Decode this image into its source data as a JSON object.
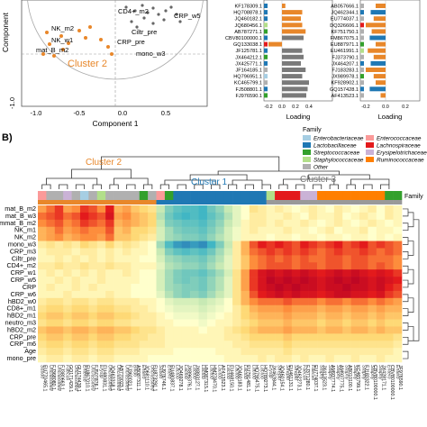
{
  "panel_b_label": "B)",
  "pca": {
    "xlabel": "Component 1",
    "ylabel": "Component",
    "xticks": [
      "-1.0",
      "-0.5",
      "0.0",
      "0.5"
    ],
    "yticks": [
      "-1.0"
    ],
    "cluster2_label": "Cluster 2",
    "point_labels": [
      "CD4+_m2",
      "CRP_w5",
      "NK_m2",
      "NK_w1",
      "mat_B_m2",
      "Ciltr_pre",
      "CRP_pre",
      "mono_w3"
    ]
  },
  "loading_panels": {
    "xlabel_left": "Loading",
    "xlabel_right": "Loading",
    "xticks_left": [
      "-0.2",
      "0.0",
      "0.2",
      "0.4"
    ],
    "xticks_right": [
      "-0.2",
      "0.0",
      "0.2"
    ],
    "taxa_left": [
      "KF178309.1",
      "HQ708878.1",
      "JQ460182.1",
      "JQ680456.1",
      "AB787271.1",
      "CBV80100000.1",
      "GQ133038.1",
      "JF125781.1",
      "JX464212.1",
      "JX425771.1",
      "JF164185.1",
      "HQ796951.1",
      "KC465799.1",
      "FJ508801.1",
      "FJ976590.1"
    ],
    "taxa_right": [
      "AB057666.1",
      "JQ462344.1",
      "EU774037.1",
      "DQ326606.1",
      "KF751750.1",
      "FM867075.1",
      "EU887971.1",
      "EU461991.1",
      "FJ373790.1",
      "JX464207.1",
      "FJ183283.1",
      "JX989978.1",
      "KF928902.1",
      "GQ157428.1",
      "AF413523.1"
    ]
  },
  "heatmap": {
    "cluster_labels": [
      "Cluster 2",
      "Cluster 1",
      "Cluster 3"
    ],
    "family_track_label": "Family",
    "rows": [
      "mat_B_m2",
      "mat_B_w3",
      "immat_B_m2",
      "NK_m1",
      "NK_m2",
      "mono_w3",
      "CRP_m3",
      "Ciltr_pre",
      "CD4+_m2",
      "CRP_w1",
      "CRP_w5",
      "CRP",
      "CRP_w6",
      "hBD2_w0",
      "CD8+_m1",
      "hBD2_m1",
      "neutro_m3",
      "hBD2_m2",
      "CRP_pre",
      "CRP_m6",
      "Age",
      "mono_pre"
    ],
    "columns": [
      "EU770465.1",
      "FJ368080.1",
      "FJ380663.1",
      "GQ171429.1",
      "GU174439.1",
      "EU867010.1",
      "FJ507876.1",
      "EU480831.1",
      "JQ463318.1",
      "AB770023.1",
      "FJ360021.1",
      "AB087311.1",
      "JQ681110.1",
      "EU873291.1",
      "FJ976746.1",
      "EU480837.1",
      "JQ469278.1",
      "JX896376.1",
      "JX893127.1",
      "HM087315.1",
      "HM278470.1",
      "AF413523.1",
      "EU468150.1",
      "JQ460183.1",
      "EU791481.1",
      "HQ795475.1",
      "HQ789273.1",
      "JX462844.1",
      "JQ460154.1",
      "EU461131.1",
      "JQ462273.1",
      "FJ371280.1",
      "EU774037.1",
      "JX413523.1",
      "AM937774.1",
      "AM937775.1",
      "AB010100.1",
      "KC465799.1",
      "FJ183322.1",
      "CBV80100000.1",
      "JX428171.1",
      "CBV80100000.1",
      "JF976590.1"
    ],
    "taxa_names": [
      "Subdo",
      "Unclassified",
      "Unclassified",
      "Faecali",
      "Unclassified",
      "Enterob",
      "Unclassified",
      "Erysip",
      "Unclassified",
      "Unclassified",
      "Unclassified",
      "Bifido",
      "Entero",
      "Unclassified",
      "Subdo",
      "Entero",
      "Lactob",
      "Lactob",
      "Lactob",
      "Lactob",
      "Lactob",
      "Lactob",
      "Lactob",
      "Lactob",
      "Lactob",
      "Lactob",
      "Lactob",
      "Erysip",
      "Strepto",
      "Strepto",
      "Strepto",
      "Faecali",
      "Faecali",
      "Staphy",
      "Staphy",
      "Staphy",
      "Staphy",
      "Staphy",
      "Staphy",
      "Staphy",
      "Staphy",
      "Entero",
      "Entero"
    ],
    "matrix": [
      [
        0.35,
        0.45,
        0.55,
        0.35,
        0.4,
        0.55,
        0.5,
        0.4,
        0.6,
        0.3,
        0.35,
        0.25,
        0.2,
        0.15,
        -0.2,
        -0.4,
        -0.5,
        -0.55,
        -0.55,
        -0.6,
        -0.45,
        -0.35,
        -0.2,
        -0.1,
        0.0,
        0.15,
        0.1,
        0.05,
        0.1,
        0.05,
        0.0,
        0.05,
        0.1,
        0.05,
        0.0,
        0.1,
        0.05,
        0.0,
        0.05,
        0.1,
        0.0,
        0.1,
        0.05
      ],
      [
        0.45,
        0.5,
        0.55,
        0.45,
        0.5,
        0.6,
        0.55,
        0.5,
        0.65,
        0.35,
        0.4,
        0.3,
        0.25,
        0.2,
        -0.25,
        -0.45,
        -0.55,
        -0.6,
        -0.55,
        -0.6,
        -0.5,
        -0.4,
        -0.25,
        -0.1,
        0.0,
        0.1,
        0.1,
        0.05,
        0.05,
        0.1,
        0.05,
        0.0,
        0.1,
        0.05,
        0.05,
        0.1,
        0.0,
        0.05,
        0.1,
        0.05,
        0.0,
        0.1,
        0.05
      ],
      [
        0.4,
        0.45,
        0.5,
        0.4,
        0.45,
        0.55,
        0.5,
        0.45,
        0.55,
        0.3,
        0.35,
        0.3,
        0.25,
        0.2,
        -0.2,
        -0.4,
        -0.45,
        -0.5,
        -0.5,
        -0.55,
        -0.45,
        -0.35,
        -0.2,
        -0.1,
        0.05,
        0.1,
        0.1,
        0.05,
        0.1,
        0.05,
        0.05,
        0.1,
        0.05,
        0.0,
        0.05,
        0.1,
        0.05,
        0.0,
        0.05,
        0.1,
        0.05,
        0.0,
        0.05
      ],
      [
        0.3,
        0.35,
        0.45,
        0.35,
        0.4,
        0.45,
        0.4,
        0.4,
        0.5,
        0.25,
        0.3,
        0.2,
        0.2,
        0.15,
        -0.15,
        -0.3,
        -0.4,
        -0.45,
        -0.45,
        -0.5,
        -0.4,
        -0.3,
        -0.15,
        -0.05,
        0.05,
        0.1,
        0.05,
        0.05,
        0.05,
        0.1,
        0.05,
        0.05,
        0.0,
        0.05,
        0.1,
        0.0,
        0.05,
        0.05,
        0.1,
        0.0,
        0.05,
        0.05,
        0.0
      ],
      [
        0.3,
        0.35,
        0.4,
        0.3,
        0.35,
        0.4,
        0.4,
        0.35,
        0.45,
        0.25,
        0.25,
        0.2,
        0.15,
        0.1,
        -0.15,
        -0.3,
        -0.35,
        -0.4,
        -0.4,
        -0.45,
        -0.35,
        -0.25,
        -0.15,
        -0.05,
        0.05,
        0.05,
        0.05,
        0.0,
        0.05,
        0.05,
        0.0,
        0.05,
        0.05,
        0.0,
        0.05,
        0.05,
        0.0,
        0.05,
        0.05,
        0.0,
        0.05,
        0.0,
        0.05
      ],
      [
        0.1,
        0.15,
        0.1,
        0.15,
        0.1,
        0.2,
        0.15,
        0.1,
        0.2,
        0.1,
        0.15,
        0.1,
        0.05,
        0.0,
        -0.3,
        -0.55,
        -0.7,
        -0.75,
        -0.7,
        -0.75,
        -0.6,
        -0.4,
        -0.2,
        0.1,
        0.3,
        0.5,
        0.6,
        0.55,
        0.6,
        0.55,
        0.5,
        0.6,
        0.55,
        0.5,
        0.55,
        0.6,
        0.5,
        0.55,
        0.6,
        0.5,
        0.55,
        0.5,
        0.45
      ],
      [
        0.05,
        0.1,
        0.1,
        0.1,
        0.05,
        0.1,
        0.1,
        0.05,
        0.1,
        0.05,
        0.1,
        0.05,
        0.05,
        0.0,
        -0.2,
        -0.4,
        -0.5,
        -0.55,
        -0.5,
        -0.55,
        -0.45,
        -0.3,
        -0.15,
        0.1,
        0.3,
        0.45,
        0.5,
        0.55,
        0.5,
        0.55,
        0.5,
        0.55,
        0.5,
        0.45,
        0.5,
        0.55,
        0.5,
        0.5,
        0.55,
        0.5,
        0.45,
        0.5,
        0.45
      ],
      [
        0.05,
        0.05,
        0.1,
        0.05,
        0.1,
        0.05,
        0.1,
        0.05,
        0.1,
        0.05,
        0.05,
        0.05,
        0.0,
        0.0,
        -0.15,
        -0.3,
        -0.35,
        -0.4,
        -0.4,
        -0.45,
        -0.35,
        -0.25,
        -0.1,
        0.1,
        0.25,
        0.4,
        0.45,
        0.5,
        0.45,
        0.5,
        0.45,
        0.5,
        0.45,
        0.45,
        0.5,
        0.5,
        0.45,
        0.5,
        0.5,
        0.45,
        0.45,
        0.45,
        0.4
      ],
      [
        0.1,
        0.1,
        0.15,
        0.1,
        0.1,
        0.15,
        0.1,
        0.1,
        0.15,
        0.1,
        0.1,
        0.05,
        0.05,
        0.05,
        -0.1,
        -0.25,
        -0.3,
        -0.35,
        -0.35,
        -0.4,
        -0.3,
        -0.2,
        -0.1,
        0.1,
        0.25,
        0.4,
        0.45,
        0.5,
        0.5,
        0.5,
        0.45,
        0.5,
        0.5,
        0.45,
        0.5,
        0.5,
        0.45,
        0.5,
        0.5,
        0.45,
        0.5,
        0.45,
        0.4
      ],
      [
        0.05,
        0.1,
        0.05,
        0.1,
        0.05,
        0.1,
        0.05,
        0.1,
        0.05,
        0.05,
        0.1,
        0.05,
        0.0,
        0.0,
        -0.15,
        -0.3,
        -0.4,
        -0.45,
        -0.45,
        -0.5,
        -0.4,
        -0.3,
        -0.15,
        0.15,
        0.35,
        0.55,
        0.65,
        0.7,
        0.65,
        0.7,
        0.65,
        0.7,
        0.65,
        0.6,
        0.65,
        0.7,
        0.65,
        0.7,
        0.65,
        0.6,
        0.65,
        0.6,
        0.55
      ],
      [
        0.05,
        0.05,
        0.1,
        0.05,
        0.1,
        0.05,
        0.05,
        0.1,
        0.05,
        0.05,
        0.05,
        0.05,
        0.0,
        0.0,
        -0.15,
        -0.3,
        -0.4,
        -0.45,
        -0.4,
        -0.45,
        -0.35,
        -0.25,
        -0.1,
        0.15,
        0.35,
        0.55,
        0.65,
        0.75,
        0.7,
        0.75,
        0.7,
        0.75,
        0.7,
        0.65,
        0.7,
        0.75,
        0.7,
        0.75,
        0.7,
        0.65,
        0.7,
        0.65,
        0.6
      ],
      [
        0.05,
        0.1,
        0.05,
        0.05,
        0.1,
        0.05,
        0.1,
        0.05,
        0.05,
        0.05,
        0.05,
        0.0,
        0.0,
        0.0,
        -0.15,
        -0.3,
        -0.35,
        -0.4,
        -0.4,
        -0.45,
        -0.35,
        -0.25,
        -0.1,
        0.15,
        0.35,
        0.55,
        0.65,
        0.7,
        0.75,
        0.7,
        0.75,
        0.7,
        0.7,
        0.65,
        0.7,
        0.7,
        0.75,
        0.7,
        0.7,
        0.65,
        0.7,
        0.6,
        0.55
      ],
      [
        0.05,
        0.05,
        0.05,
        0.1,
        0.05,
        0.05,
        0.05,
        0.05,
        0.1,
        0.05,
        0.05,
        0.0,
        0.0,
        0.0,
        -0.1,
        -0.25,
        -0.35,
        -0.4,
        -0.35,
        -0.4,
        -0.3,
        -0.2,
        -0.1,
        0.15,
        0.3,
        0.5,
        0.6,
        0.65,
        0.7,
        0.65,
        0.7,
        0.65,
        0.65,
        0.6,
        0.65,
        0.7,
        0.7,
        0.65,
        0.65,
        0.6,
        0.65,
        0.55,
        0.5
      ],
      [
        0.1,
        0.15,
        0.15,
        0.1,
        0.15,
        0.15,
        0.1,
        0.15,
        0.15,
        0.1,
        0.1,
        0.1,
        0.05,
        0.05,
        0.0,
        -0.1,
        -0.15,
        -0.15,
        -0.15,
        -0.2,
        -0.15,
        -0.1,
        0.0,
        0.15,
        0.3,
        0.4,
        0.45,
        0.45,
        0.45,
        0.5,
        0.45,
        0.45,
        0.45,
        0.4,
        0.45,
        0.45,
        0.4,
        0.45,
        0.45,
        0.4,
        0.45,
        0.4,
        0.35
      ],
      [
        0.15,
        0.2,
        0.2,
        0.15,
        0.2,
        0.2,
        0.15,
        0.2,
        0.2,
        0.15,
        0.15,
        0.1,
        0.1,
        0.05,
        0.0,
        -0.05,
        -0.1,
        -0.1,
        -0.1,
        -0.15,
        -0.1,
        -0.05,
        0.0,
        0.1,
        0.2,
        0.3,
        0.35,
        0.35,
        0.35,
        0.4,
        0.35,
        0.35,
        0.35,
        0.3,
        0.35,
        0.35,
        0.3,
        0.35,
        0.35,
        0.3,
        0.35,
        0.3,
        0.3
      ],
      [
        0.2,
        0.25,
        0.25,
        0.2,
        0.25,
        0.25,
        0.2,
        0.25,
        0.25,
        0.2,
        0.2,
        0.15,
        0.1,
        0.1,
        0.05,
        0.0,
        -0.05,
        -0.05,
        -0.05,
        -0.1,
        -0.05,
        0.0,
        0.05,
        0.1,
        0.2,
        0.25,
        0.3,
        0.3,
        0.3,
        0.35,
        0.3,
        0.3,
        0.3,
        0.25,
        0.3,
        0.3,
        0.25,
        0.3,
        0.3,
        0.25,
        0.3,
        0.25,
        0.25
      ],
      [
        0.15,
        0.2,
        0.2,
        0.15,
        0.2,
        0.2,
        0.15,
        0.2,
        0.2,
        0.15,
        0.15,
        0.1,
        0.1,
        0.1,
        0.05,
        0.05,
        0.0,
        0.0,
        0.0,
        -0.05,
        0.0,
        0.05,
        0.05,
        0.1,
        0.15,
        0.2,
        0.25,
        0.25,
        0.25,
        0.3,
        0.25,
        0.25,
        0.25,
        0.2,
        0.25,
        0.25,
        0.2,
        0.25,
        0.25,
        0.2,
        0.25,
        0.2,
        0.2
      ],
      [
        0.25,
        0.3,
        0.3,
        0.25,
        0.3,
        0.3,
        0.25,
        0.3,
        0.3,
        0.25,
        0.25,
        0.2,
        0.15,
        0.15,
        0.1,
        0.05,
        0.05,
        0.05,
        0.05,
        0.0,
        0.05,
        0.05,
        0.1,
        0.15,
        0.2,
        0.25,
        0.3,
        0.3,
        0.3,
        0.35,
        0.3,
        0.3,
        0.3,
        0.25,
        0.3,
        0.3,
        0.25,
        0.3,
        0.3,
        0.25,
        0.3,
        0.25,
        0.25
      ],
      [
        0.2,
        0.25,
        0.25,
        0.2,
        0.25,
        0.25,
        0.2,
        0.25,
        0.25,
        0.2,
        0.2,
        0.15,
        0.15,
        0.1,
        0.1,
        0.05,
        0.05,
        0.05,
        0.05,
        0.05,
        0.05,
        0.05,
        0.1,
        0.1,
        0.15,
        0.2,
        0.2,
        0.2,
        0.2,
        0.25,
        0.2,
        0.2,
        0.2,
        0.2,
        0.2,
        0.2,
        0.2,
        0.2,
        0.2,
        0.2,
        0.2,
        0.2,
        0.15
      ],
      [
        0.15,
        0.2,
        0.2,
        0.15,
        0.2,
        0.2,
        0.15,
        0.2,
        0.2,
        0.15,
        0.15,
        0.15,
        0.1,
        0.1,
        0.1,
        0.05,
        0.05,
        0.05,
        0.05,
        0.05,
        0.05,
        0.05,
        0.05,
        0.1,
        0.1,
        0.15,
        0.15,
        0.15,
        0.15,
        0.2,
        0.15,
        0.15,
        0.15,
        0.15,
        0.15,
        0.15,
        0.15,
        0.15,
        0.15,
        0.15,
        0.15,
        0.15,
        0.1
      ],
      [
        0.1,
        0.15,
        0.15,
        0.1,
        0.15,
        0.15,
        0.1,
        0.15,
        0.15,
        0.1,
        0.1,
        0.1,
        0.05,
        0.05,
        0.05,
        0.05,
        0.0,
        0.0,
        0.0,
        0.0,
        0.0,
        0.05,
        0.05,
        0.05,
        0.1,
        0.1,
        0.1,
        0.1,
        0.1,
        0.15,
        0.1,
        0.1,
        0.1,
        0.1,
        0.1,
        0.1,
        0.1,
        0.1,
        0.1,
        0.1,
        0.1,
        0.1,
        0.05
      ],
      [
        0.05,
        0.1,
        0.1,
        0.05,
        0.1,
        0.1,
        0.05,
        0.1,
        0.1,
        0.05,
        0.05,
        0.05,
        0.05,
        0.0,
        0.0,
        0.0,
        0.0,
        0.0,
        0.0,
        0.0,
        0.0,
        0.0,
        0.05,
        0.05,
        0.05,
        0.05,
        0.1,
        0.05,
        0.1,
        0.1,
        0.05,
        0.1,
        0.05,
        0.05,
        0.1,
        0.05,
        0.05,
        0.1,
        0.05,
        0.05,
        0.1,
        0.05,
        0.05
      ]
    ],
    "family_of_column": [
      1,
      8,
      8,
      5,
      8,
      0,
      8,
      6,
      8,
      8,
      8,
      8,
      4,
      8,
      1,
      4,
      2,
      2,
      2,
      2,
      2,
      2,
      2,
      2,
      2,
      2,
      2,
      6,
      3,
      3,
      3,
      5,
      5,
      7,
      7,
      7,
      7,
      7,
      7,
      7,
      7,
      4,
      4
    ]
  },
  "legend": {
    "title": "Family",
    "items": [
      {
        "label": "Enterobacteriaceae",
        "color": "#a6cee3"
      },
      {
        "label": "Enterococcaceae",
        "color": "#fb9a99"
      },
      {
        "label": "Lactobacillaceae",
        "color": "#1f78b4"
      },
      {
        "label": "Lachnospiraceae",
        "color": "#e31a1c"
      },
      {
        "label": "Streptococcaceae",
        "color": "#33a02c"
      },
      {
        "label": "Erysipelotrichaceae",
        "color": "#cab2d6"
      },
      {
        "label": "Staphylococcaceae",
        "color": "#b2df8a"
      },
      {
        "label": "Ruminococcaceae",
        "color": "#ff7f00"
      },
      {
        "label": "Other",
        "color": "#b0b0b0"
      }
    ]
  },
  "colors": {
    "orange": "#e8872a",
    "grey_bar": "#7a7a7a",
    "accent_blue": "#2166ac",
    "accent_red": "#b2182b"
  }
}
